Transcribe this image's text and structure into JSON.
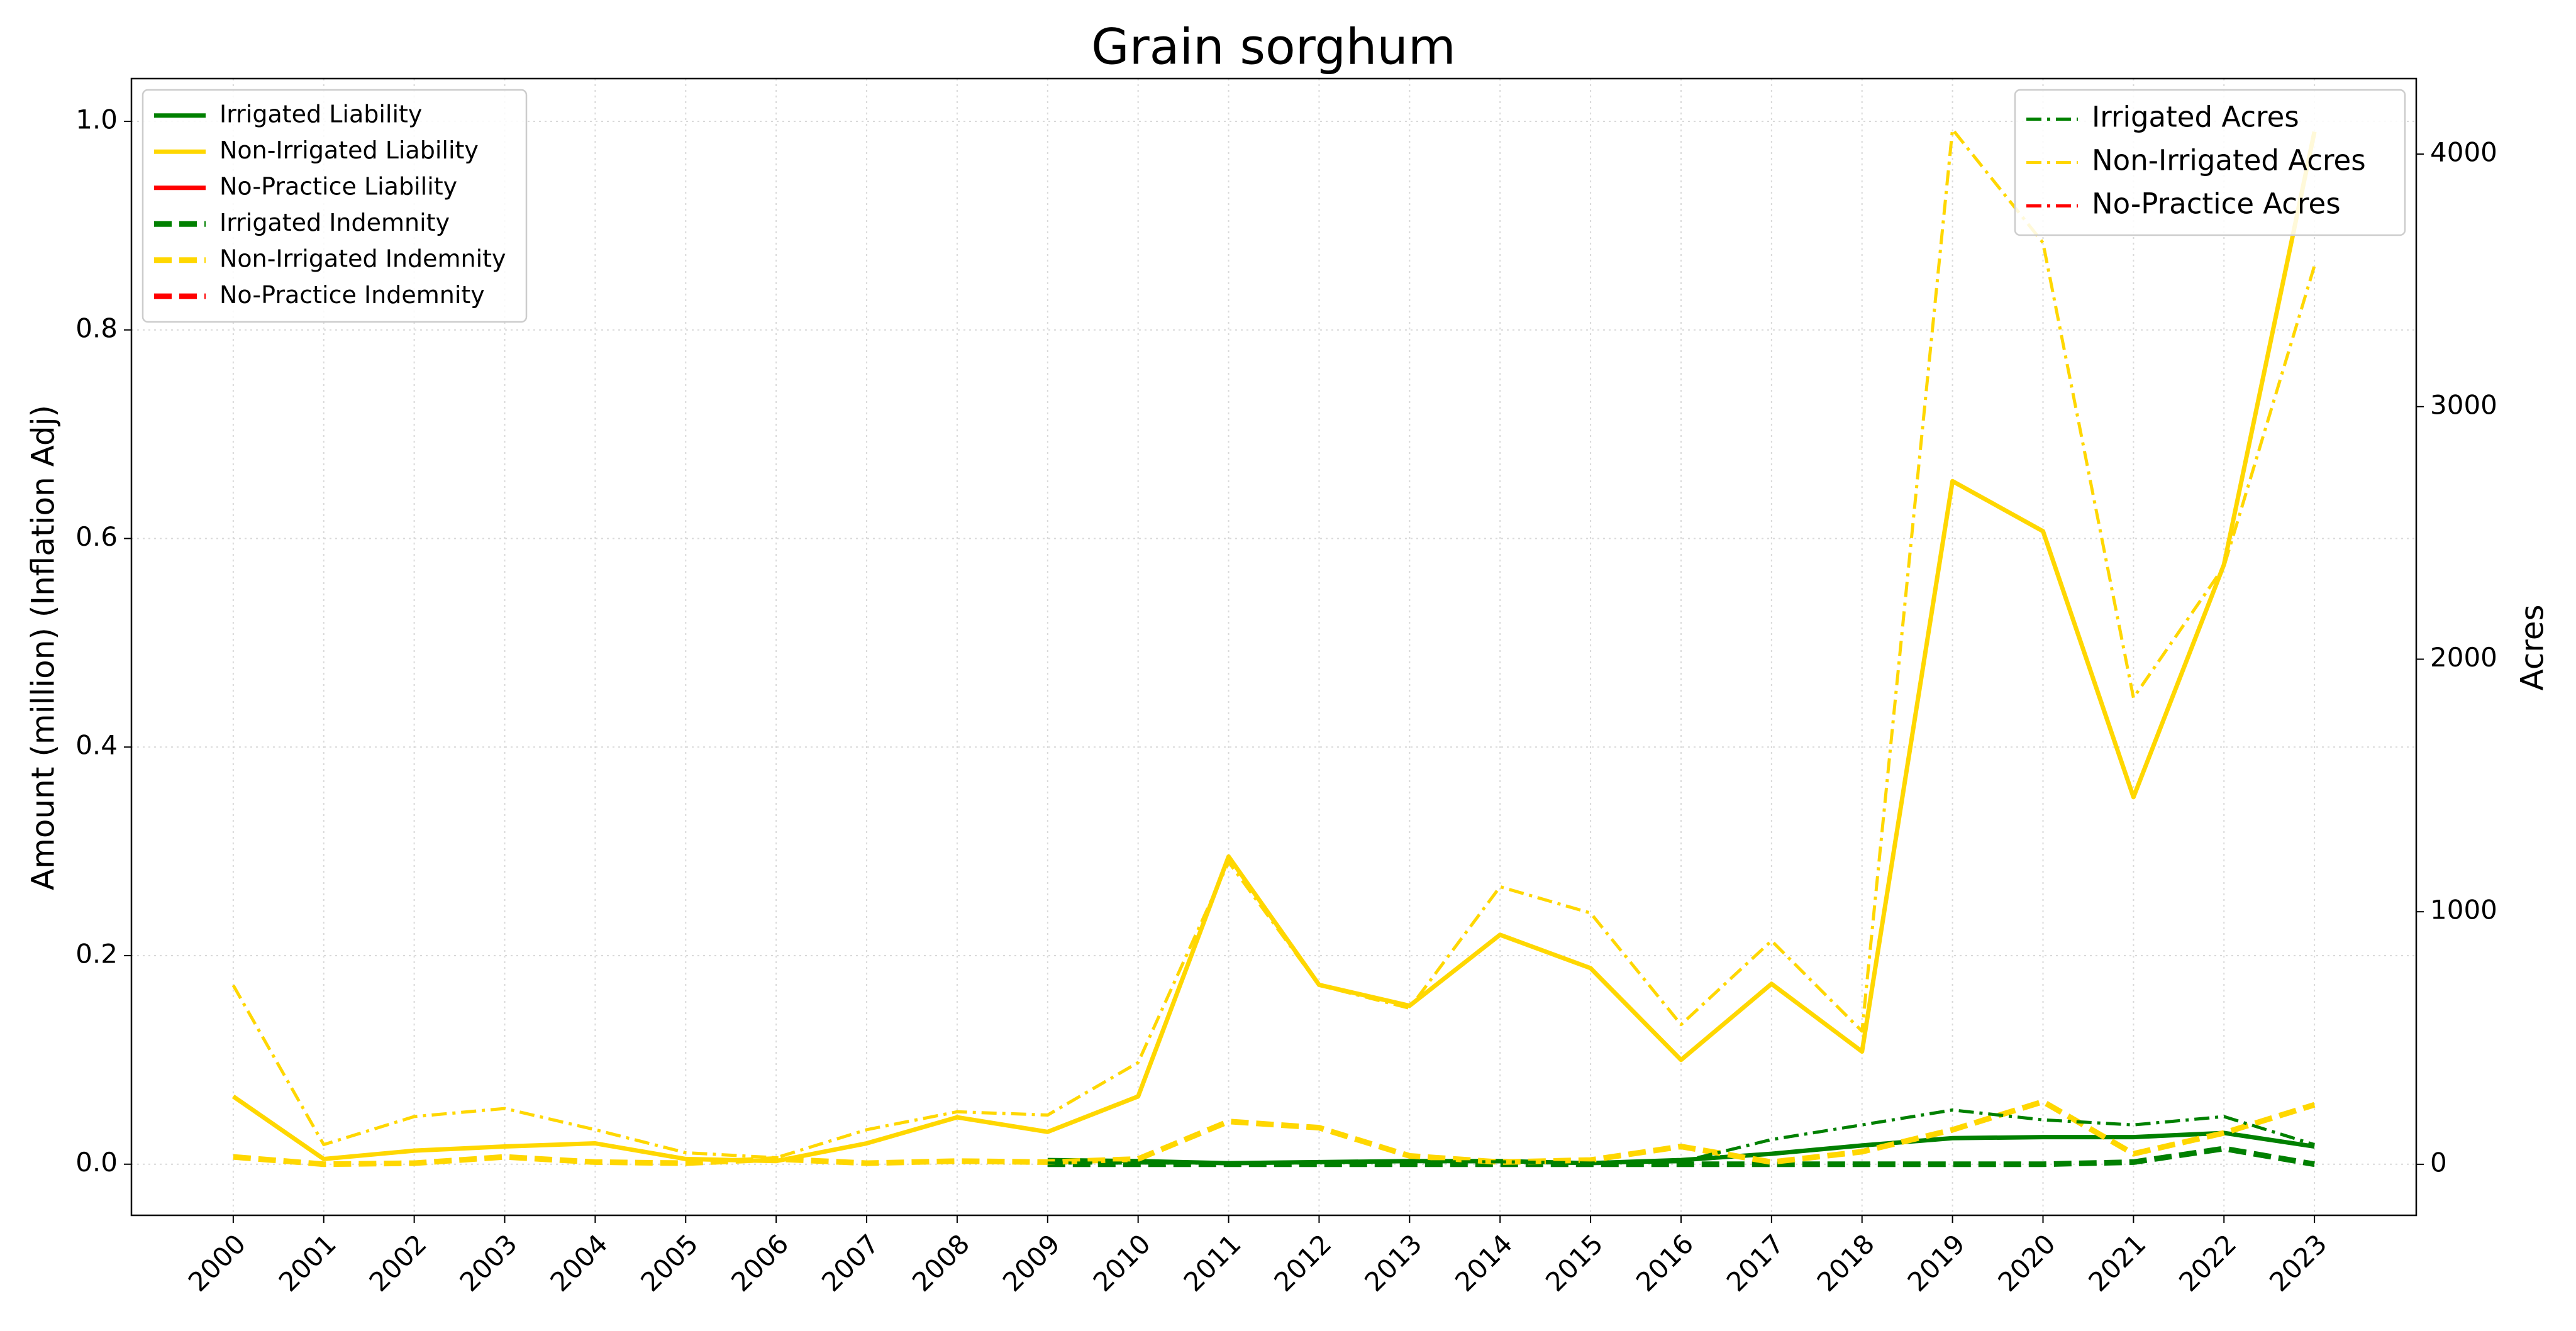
{
  "chart_data": {
    "type": "line",
    "title": "Grain sorghum",
    "ylabel": "Amount (million) (Inflation Adj)",
    "y2label": "Acres",
    "x": [
      2000,
      2001,
      2002,
      2003,
      2004,
      2005,
      2006,
      2007,
      2008,
      2009,
      2010,
      2011,
      2012,
      2013,
      2014,
      2015,
      2016,
      2017,
      2018,
      2019,
      2020,
      2021,
      2022,
      2023
    ],
    "xlim": [
      1998.875,
      2024.125
    ],
    "xticks": [
      2000,
      2001,
      2002,
      2003,
      2004,
      2005,
      2006,
      2007,
      2008,
      2009,
      2010,
      2011,
      2012,
      2013,
      2014,
      2015,
      2016,
      2017,
      2018,
      2019,
      2020,
      2021,
      2022,
      2023
    ],
    "ylim": [
      -0.049,
      1.041
    ],
    "yticks": [
      {
        "value": 0,
        "label": "0.0"
      },
      0.2,
      0.4,
      0.6,
      0.8,
      {
        "value": 1,
        "label": "1.0"
      }
    ],
    "y2lim": [
      -202,
      4299
    ],
    "y2ticks": [
      0,
      1000,
      2000,
      3000,
      4000
    ],
    "grid": true,
    "legend_loc": "upper left",
    "y2_legend_loc": "upper right",
    "series": [
      {
        "name": "Irrigated Liability",
        "color": "#008000",
        "linestyle": "solid",
        "values": [
          null,
          null,
          null,
          null,
          null,
          null,
          null,
          null,
          null,
          0.004,
          0.003,
          0.001,
          0.002,
          0.003,
          0.003,
          0.001,
          0.004,
          0.01,
          0.018,
          0.025,
          0.026,
          0.026,
          0.03,
          0.017
        ]
      },
      {
        "name": "Non-Irrigated Liability",
        "color": "#ffd700",
        "linestyle": "solid",
        "values": [
          0.065,
          0.005,
          0.013,
          0.017,
          0.02,
          0.005,
          0.003,
          0.02,
          0.045,
          0.031,
          0.065,
          0.295,
          0.172,
          0.152,
          0.22,
          0.188,
          0.1,
          0.173,
          0.108,
          0.655,
          0.607,
          0.352,
          0.575,
          0.99
        ]
      },
      {
        "name": "No-Practice Liability",
        "color": "#ff0000",
        "linestyle": "solid",
        "values": [
          null,
          null,
          null,
          null,
          null,
          null,
          null,
          null,
          null,
          null,
          null,
          null,
          null,
          null,
          null,
          null,
          null,
          null,
          null,
          null,
          null,
          null,
          null,
          null
        ]
      },
      {
        "name": "Irrigated Indemnity",
        "color": "#008000",
        "linestyle": "dashed",
        "values": [
          null,
          null,
          null,
          null,
          null,
          null,
          null,
          null,
          null,
          0,
          0,
          0,
          0,
          0,
          0,
          0,
          0,
          0,
          0,
          0,
          0,
          0.002,
          0.015,
          0
        ]
      },
      {
        "name": "Non-Irrigated Indemnity",
        "color": "#ffd700",
        "linestyle": "dashed",
        "values": [
          0.007,
          0,
          0.001,
          0.007,
          0.002,
          0.001,
          0.005,
          0.001,
          0.003,
          0.002,
          0.005,
          0.041,
          0.035,
          0.008,
          0.002,
          0.004,
          0.017,
          0.002,
          0.012,
          0.033,
          0.06,
          0.01,
          0.03,
          0.057
        ]
      },
      {
        "name": "No-Practice Indemnity",
        "color": "#ff0000",
        "linestyle": "dashed",
        "values": [
          null,
          null,
          null,
          null,
          null,
          null,
          null,
          null,
          null,
          null,
          null,
          null,
          null,
          null,
          null,
          null,
          null,
          null,
          null,
          null,
          null,
          null,
          null,
          null
        ]
      },
      {
        "name": "Irrigated Acres",
        "color": "#008000",
        "linestyle": "dashdot",
        "axis": "y2",
        "values": [
          null,
          null,
          null,
          null,
          null,
          null,
          null,
          null,
          null,
          5,
          5,
          5,
          10,
          10,
          10,
          5,
          10,
          98,
          156,
          215,
          176,
          156,
          189,
          78
        ]
      },
      {
        "name": "Non-Irrigated Acres",
        "color": "#ffd700",
        "linestyle": "dashdot",
        "axis": "y2",
        "values": [
          709,
          78,
          189,
          221,
          137,
          46,
          26,
          137,
          208,
          195,
          403,
          1197,
          709,
          618,
          1099,
          995,
          553,
          885,
          527,
          4098,
          3649,
          1847,
          2367,
          3558
        ]
      },
      {
        "name": "No-Practice Acres",
        "color": "#ff0000",
        "linestyle": "dashdot",
        "axis": "y2",
        "values": [
          null,
          null,
          null,
          null,
          null,
          null,
          null,
          null,
          null,
          null,
          null,
          null,
          null,
          null,
          null,
          null,
          null,
          null,
          null,
          null,
          null,
          null,
          null,
          null
        ]
      }
    ]
  }
}
